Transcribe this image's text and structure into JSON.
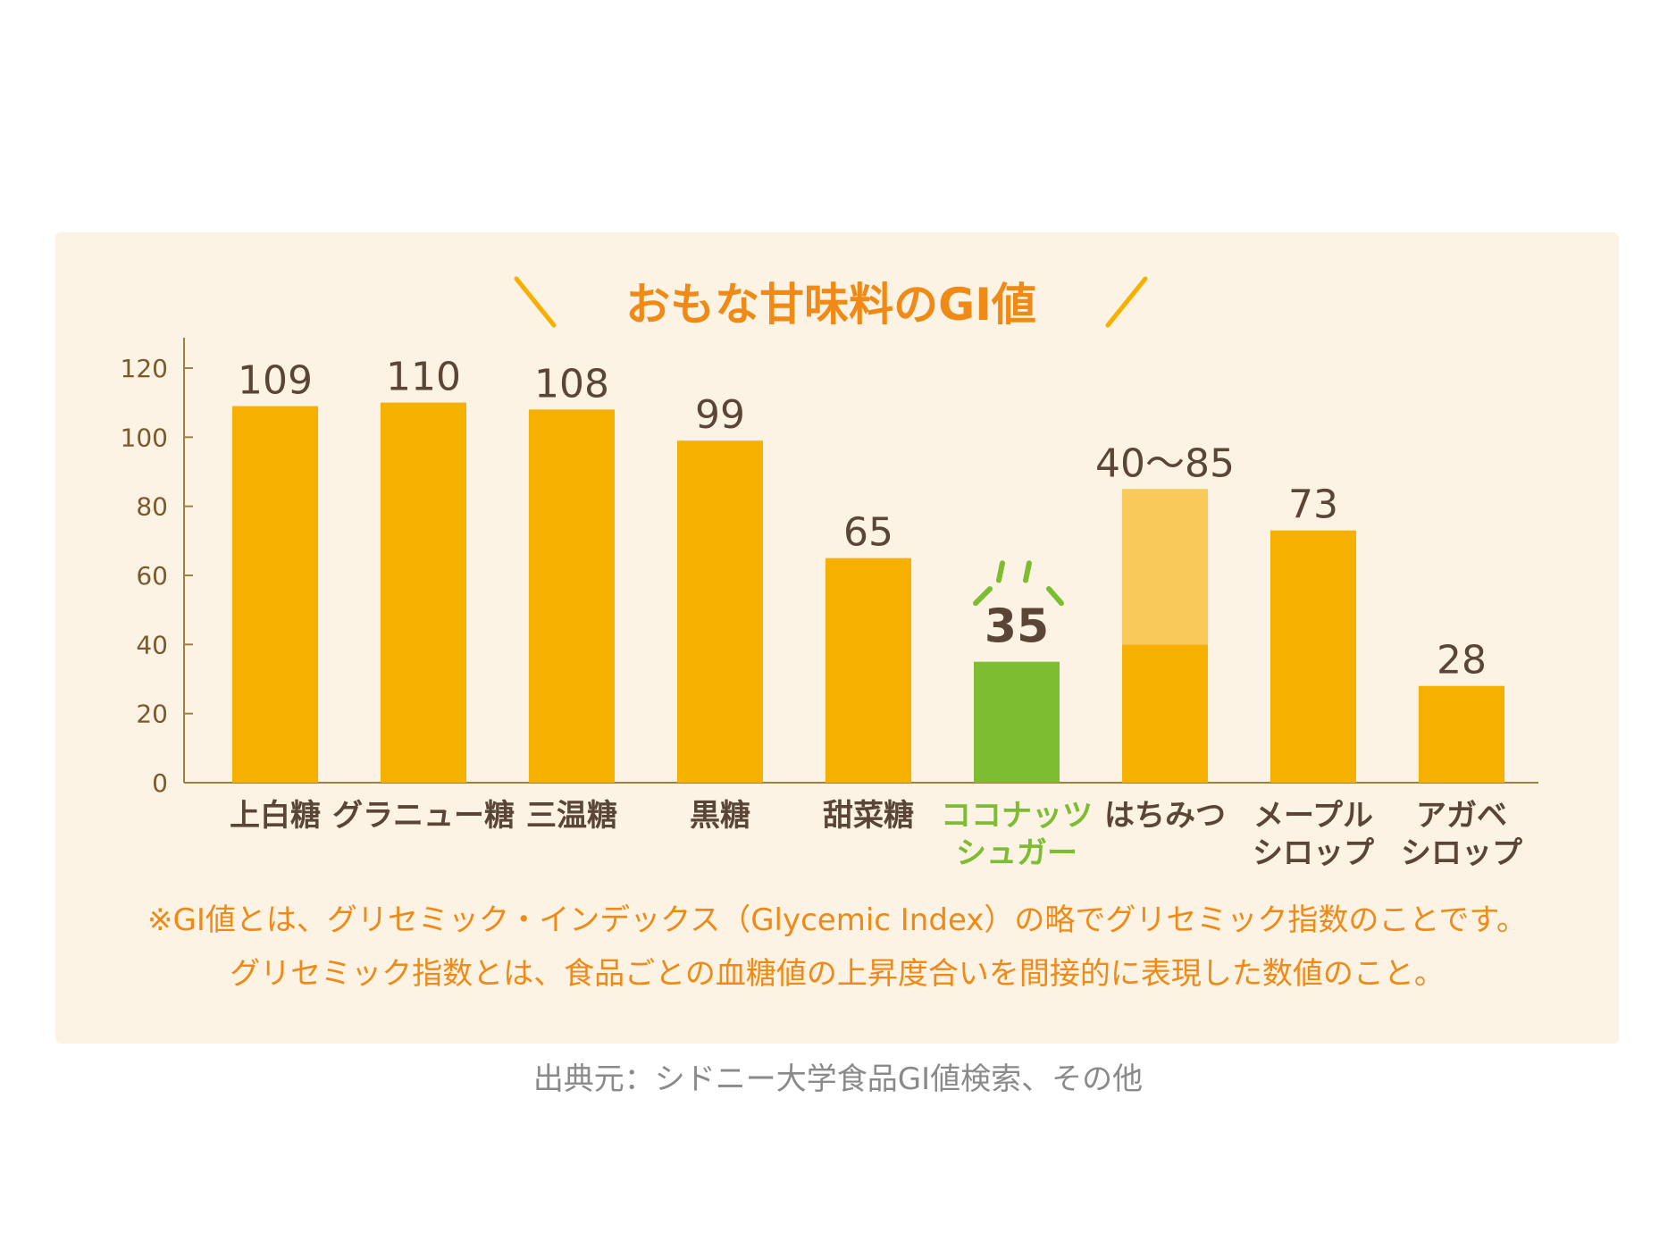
{
  "chart_data": {
    "type": "bar",
    "title": "おもな甘味料のGI値",
    "categories": [
      [
        "上白糖"
      ],
      [
        "グラニュー糖"
      ],
      [
        "三温糖"
      ],
      [
        "黒糖"
      ],
      [
        "甜菜糖"
      ],
      [
        "ココナッツ",
        "シュガー"
      ],
      [
        "はちみつ"
      ],
      [
        "メープル",
        "シロップ"
      ],
      [
        "アガベ",
        "シロップ"
      ]
    ],
    "values": [
      109,
      110,
      108,
      99,
      65,
      35,
      [
        40,
        85
      ],
      73,
      28
    ],
    "value_labels": [
      "109",
      "110",
      "108",
      "99",
      "65",
      "35",
      "40〜85",
      "73",
      "28"
    ],
    "highlight_index": 5,
    "ylim": [
      0,
      120
    ],
    "yticks": [
      0,
      20,
      40,
      60,
      80,
      100,
      120
    ],
    "grid": false,
    "colors": {
      "bar": "#f5b000",
      "range_upper": "#f9c95a",
      "highlight": "#7cbd32",
      "axis": "#a08040",
      "title": "#ef8a16",
      "value_text": "#5a4536"
    }
  },
  "notes": [
    "※GI値とは、グリセミック・インデックス（Glycemic Index）の略でグリセミック指数のことです。",
    "グリセミック指数とは、食品ごとの血糖値の上昇度合いを間接的に表現した数値のこと。"
  ],
  "source": "出典元：シドニー大学食品GI値検索、その他"
}
